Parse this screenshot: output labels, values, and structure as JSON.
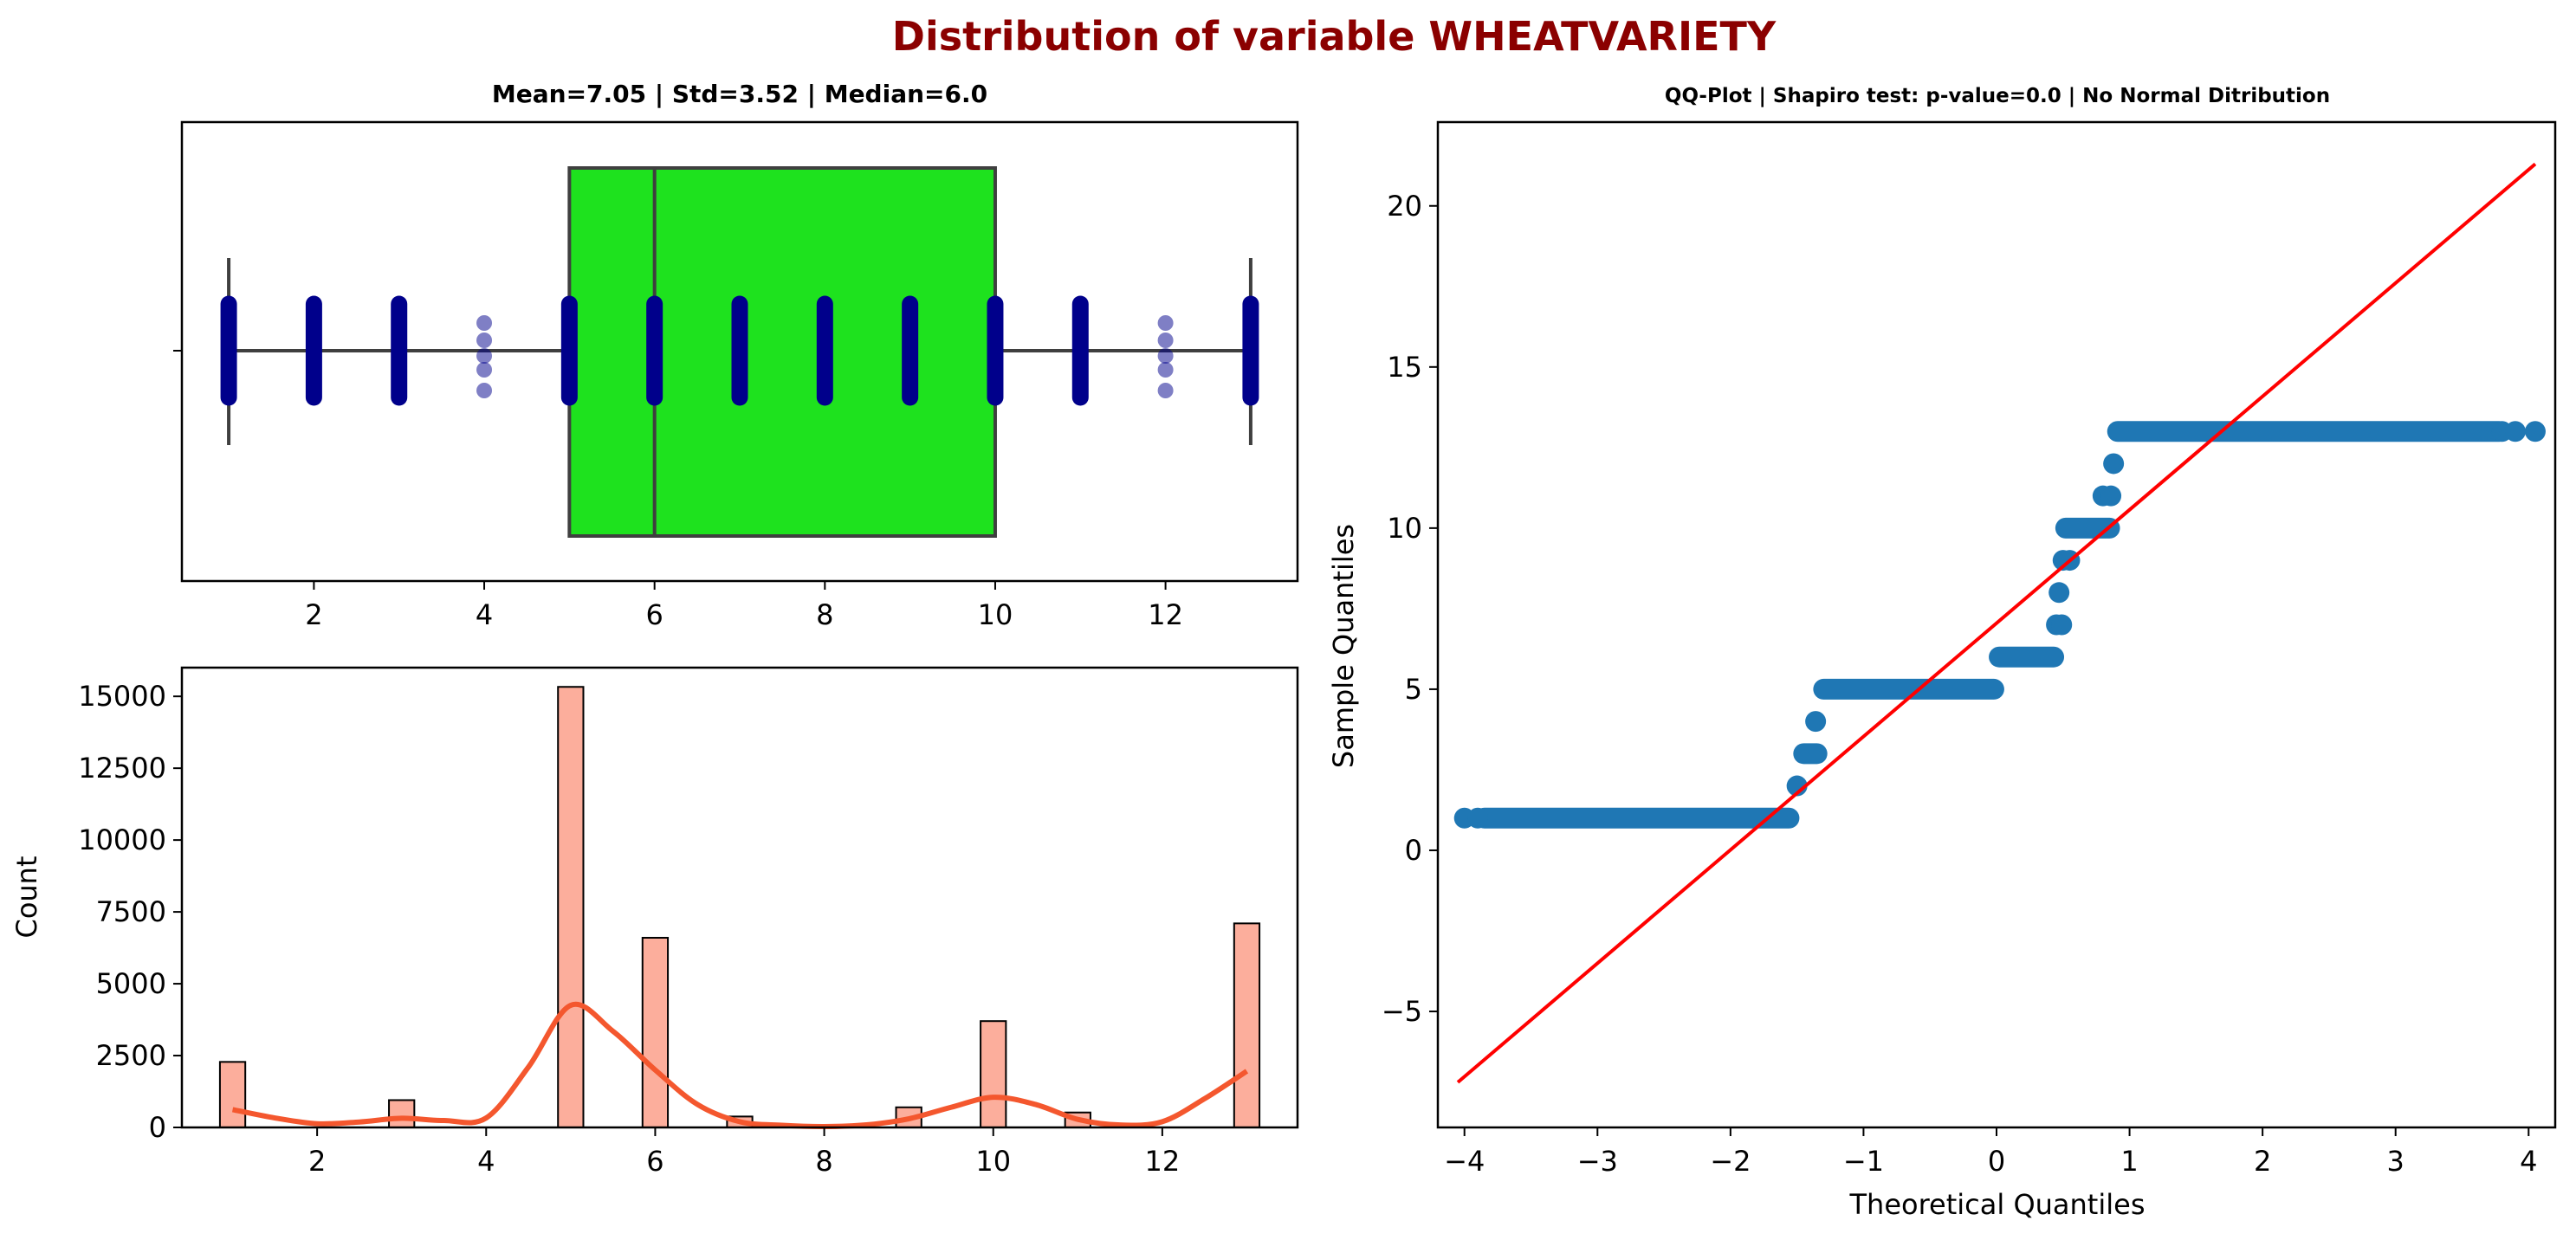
{
  "figure": {
    "suptitle": "Distribution of variable WHEATVARIETY",
    "title_color": "#8b0000"
  },
  "chart_data": [
    {
      "type": "box",
      "title": "Mean=7.05 | Std=3.52 | Median=6.0",
      "xlim": [
        0.45,
        13.55
      ],
      "xticks": [
        2,
        4,
        6,
        8,
        10,
        12
      ],
      "box": {
        "whisker_low": 1,
        "q1": 5,
        "median": 6,
        "q3": 10,
        "whisker_high": 13
      },
      "box_color": "#1ee21e",
      "strip_values": [
        1,
        2,
        3,
        4,
        5,
        6,
        7,
        8,
        9,
        10,
        11,
        12,
        13
      ],
      "dense_values": [
        1,
        2,
        3,
        5,
        6,
        7,
        8,
        9,
        10,
        11,
        13
      ],
      "sparse_values": [
        4,
        12
      ],
      "strip_color": "#00008b"
    },
    {
      "type": "bar",
      "title": "",
      "xlabel": "",
      "ylabel": "Count",
      "xlim": [
        0.4,
        13.6
      ],
      "ylim": [
        0,
        16000
      ],
      "xticks": [
        2,
        4,
        6,
        8,
        10,
        12
      ],
      "yticks": [
        0,
        2500,
        5000,
        7500,
        10000,
        12500,
        15000
      ],
      "bins": [
        {
          "x": 1,
          "count": 2280
        },
        {
          "x": 3,
          "count": 950
        },
        {
          "x": 5,
          "count": 15330
        },
        {
          "x": 6,
          "count": 6600
        },
        {
          "x": 7,
          "count": 380
        },
        {
          "x": 9,
          "count": 700
        },
        {
          "x": 10,
          "count": 3700
        },
        {
          "x": 11,
          "count": 520
        },
        {
          "x": 13,
          "count": 7100
        }
      ],
      "bar_width": 0.3,
      "bar_color": "#fcae9c",
      "kde_color": "#f4572e",
      "kde": {
        "x": [
          1.0,
          1.5,
          2.0,
          2.5,
          3.0,
          3.5,
          4.0,
          4.5,
          5.0,
          5.5,
          6.0,
          6.5,
          7.0,
          7.5,
          8.0,
          8.5,
          9.0,
          9.5,
          10.0,
          10.5,
          11.0,
          11.5,
          12.0,
          12.5,
          13.0
        ],
        "y": [
          620,
          330,
          130,
          190,
          320,
          240,
          330,
          2100,
          4250,
          3350,
          2000,
          800,
          200,
          75,
          30,
          90,
          300,
          700,
          1050,
          800,
          280,
          85,
          200,
          1000,
          1960
        ]
      }
    },
    {
      "type": "scatter",
      "title": "QQ-Plot | Shapiro test: p-value=0.0 | No Normal Ditribution",
      "xlabel": "Theoretical Quantiles",
      "ylabel": "Sample Quantiles",
      "xlim": [
        -4.2,
        4.2
      ],
      "ylim": [
        -8.6,
        22.6
      ],
      "xticks": [
        -4,
        -3,
        -2,
        -1,
        0,
        1,
        2,
        3,
        4
      ],
      "yticks": [
        -5,
        0,
        5,
        10,
        15,
        20
      ],
      "tick_labels_x": [
        "−4",
        "−3",
        "−2",
        "−1",
        "0",
        "1",
        "2",
        "3",
        "4"
      ],
      "tick_labels_y": [
        "−5",
        "0",
        "5",
        "10",
        "15",
        "20"
      ],
      "point_color": "#1f77b4",
      "line_color": "#ff0000",
      "reference_line": {
        "x": [
          -4.05,
          4.05
        ],
        "y": [
          -7.2,
          21.3
        ]
      },
      "segments": [
        {
          "x0": -3.85,
          "x1": -1.56,
          "y": 1
        },
        {
          "x0": -1.45,
          "x1": -1.35,
          "y": 3
        },
        {
          "x0": -1.3,
          "x1": -0.02,
          "y": 5
        },
        {
          "x0": 0.02,
          "x1": 0.43,
          "y": 6
        },
        {
          "x0": 0.52,
          "x1": 0.85,
          "y": 10
        },
        {
          "x0": 0.91,
          "x1": 3.78,
          "y": 13
        }
      ],
      "points": [
        {
          "x": -4.0,
          "y": 1
        },
        {
          "x": -3.9,
          "y": 1
        },
        {
          "x": -1.5,
          "y": 2
        },
        {
          "x": -1.36,
          "y": 4
        },
        {
          "x": 0.45,
          "y": 7
        },
        {
          "x": 0.49,
          "y": 7
        },
        {
          "x": 0.47,
          "y": 8
        },
        {
          "x": 0.5,
          "y": 9
        },
        {
          "x": 0.55,
          "y": 9
        },
        {
          "x": 0.8,
          "y": 11
        },
        {
          "x": 0.86,
          "y": 11
        },
        {
          "x": 0.88,
          "y": 12
        },
        {
          "x": 3.8,
          "y": 13
        },
        {
          "x": 3.9,
          "y": 13
        },
        {
          "x": 4.05,
          "y": 13
        }
      ]
    }
  ]
}
